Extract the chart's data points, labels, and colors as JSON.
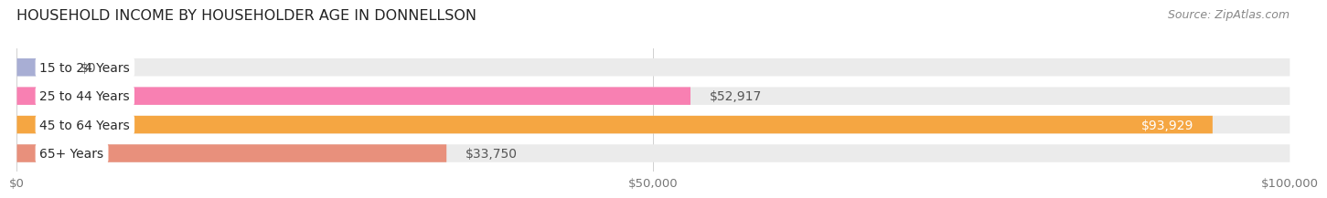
{
  "title": "HOUSEHOLD INCOME BY HOUSEHOLDER AGE IN DONNELLSON",
  "source": "Source: ZipAtlas.com",
  "categories": [
    "15 to 24 Years",
    "25 to 44 Years",
    "45 to 64 Years",
    "65+ Years"
  ],
  "values": [
    0,
    52917,
    93929,
    33750
  ],
  "bar_colors": [
    "#a8aed4",
    "#f880b2",
    "#f5a642",
    "#e8907c"
  ],
  "track_color": "#ebebeb",
  "xlim": [
    0,
    100000
  ],
  "xticks": [
    0,
    50000,
    100000
  ],
  "xtick_labels": [
    "$0",
    "$50,000",
    "$100,000"
  ],
  "value_labels": [
    "$0",
    "$52,917",
    "$93,929",
    "$33,750"
  ],
  "background_color": "#ffffff",
  "bar_height": 0.62,
  "title_fontsize": 11.5,
  "label_fontsize": 10,
  "tick_fontsize": 9.5,
  "source_fontsize": 9
}
